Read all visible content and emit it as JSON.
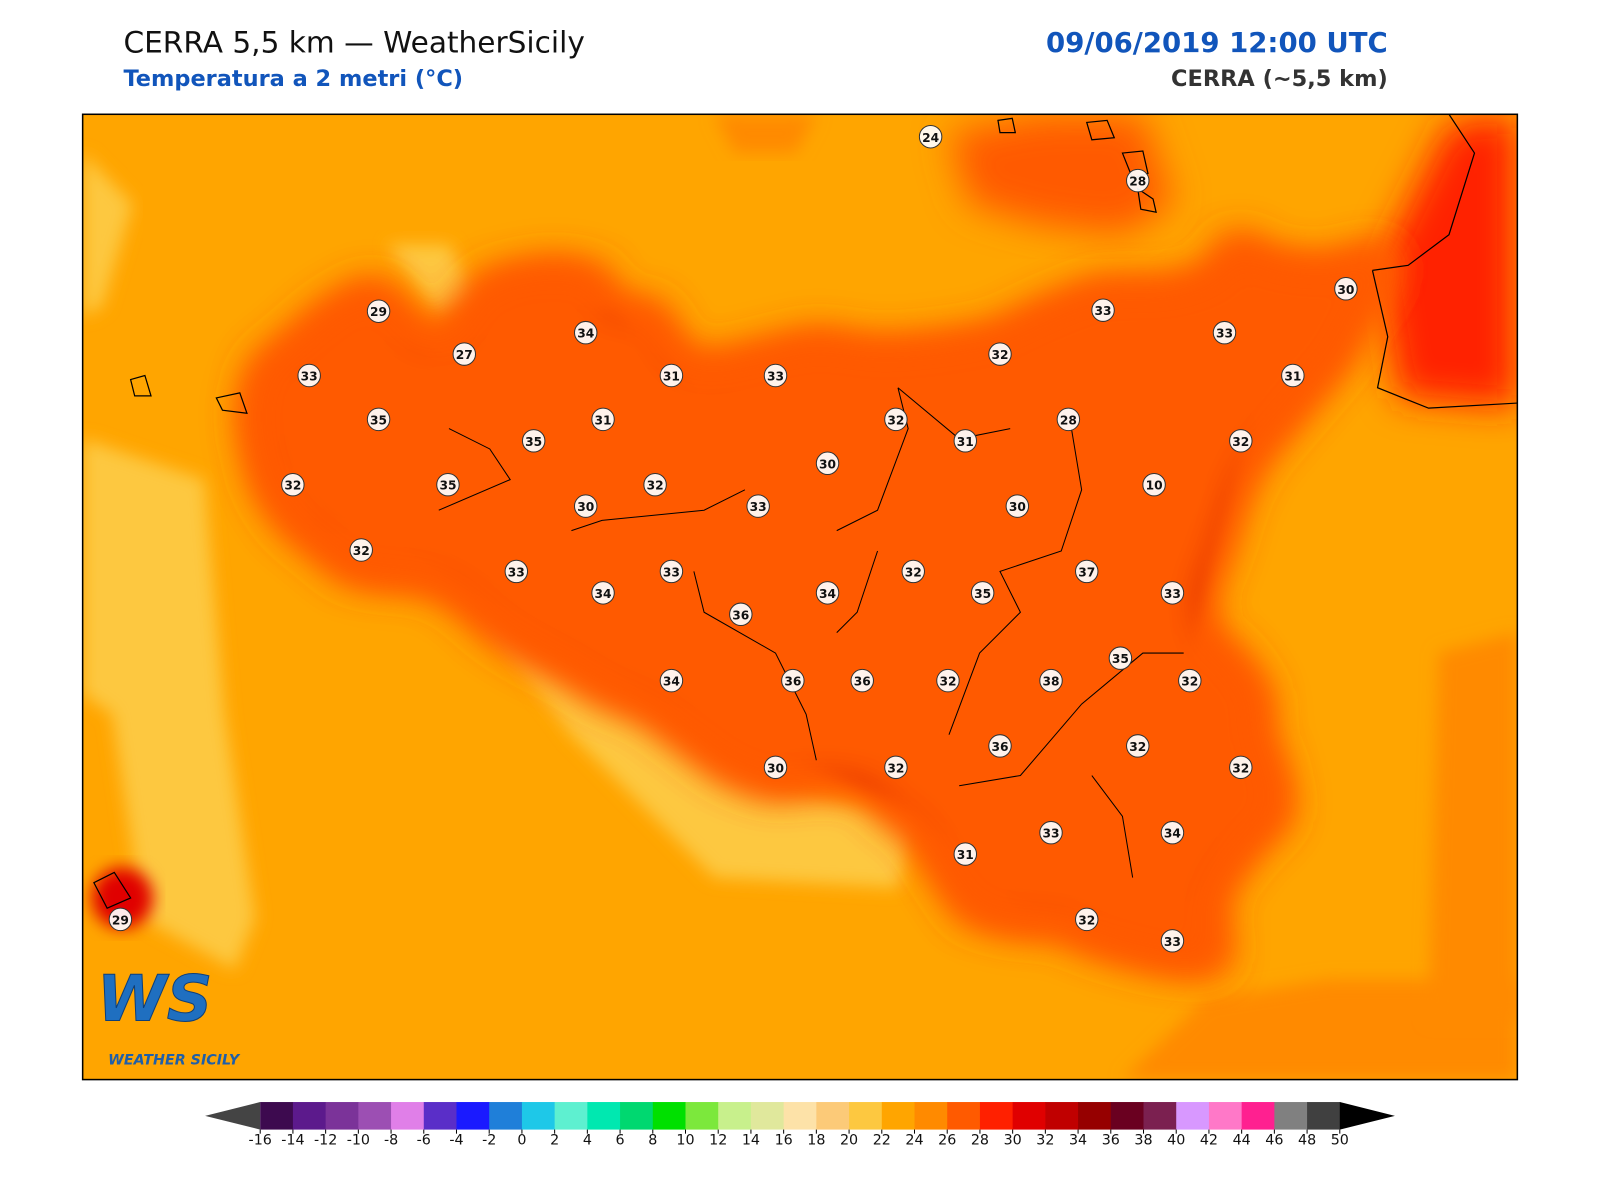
{
  "header": {
    "title": "CERRA 5,5 km — WeatherSicily",
    "subtitle": "Temperatura a 2 metri (°C)",
    "datetime": "09/06/2019 12:00 UTC",
    "model": "CERRA (~5,5 km)"
  },
  "stations": [
    24,
    28,
    29,
    30,
    33,
    33,
    27,
    34,
    33,
    31,
    33,
    32,
    31,
    35,
    31,
    32,
    28,
    35,
    31,
    32,
    30,
    10,
    32,
    35,
    32,
    30,
    33,
    30,
    32,
    33,
    33,
    32,
    37,
    34,
    34,
    35,
    33,
    36,
    35,
    34,
    36,
    36,
    32,
    38,
    32,
    36,
    32,
    30,
    32,
    32,
    33,
    34,
    31,
    32,
    33,
    29
  ],
  "colorbar": {
    "ticks": [
      -16,
      -14,
      -12,
      -10,
      -8,
      -6,
      -4,
      -2,
      0,
      2,
      4,
      6,
      8,
      10,
      12,
      14,
      16,
      18,
      20,
      22,
      24,
      26,
      28,
      30,
      32,
      34,
      36,
      38,
      40,
      42,
      44,
      46,
      48,
      50
    ],
    "colors": [
      "#3d0a4f",
      "#5c1a8c",
      "#7b3399",
      "#9c4fb3",
      "#e07fe8",
      "#5a2ec8",
      "#1a1aff",
      "#1f7fd9",
      "#1ec8e8",
      "#5ef0d0",
      "#00e8b0",
      "#00d870",
      "#00e000",
      "#7ce83c",
      "#c8f08c",
      "#e0e89c",
      "#fde2a8",
      "#fcca78",
      "#fdc840",
      "#ffa500",
      "#ff8a00",
      "#ff5a00",
      "#ff2000",
      "#e00000",
      "#c00000",
      "#960000",
      "#6a0020",
      "#7b2050",
      "#d898ff",
      "#ff78c8",
      "#ff2090",
      "#808080",
      "#404040"
    ],
    "under_color": "#444444",
    "over_color": "#000000"
  },
  "logo": {
    "mark": "WS",
    "name": "WEATHER SICILY"
  }
}
